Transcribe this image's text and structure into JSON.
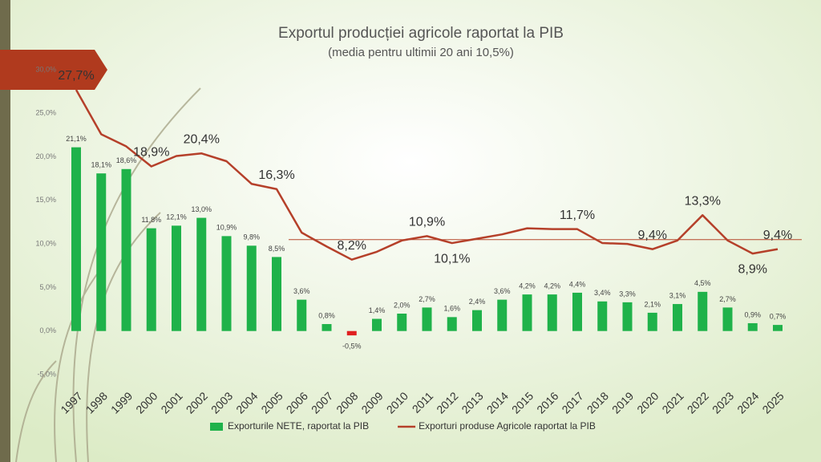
{
  "chart_data": {
    "type": "combo",
    "title": "Exportul producției agricole raportat la PIB",
    "subtitle": "(media pentru ultimii 20 ani 10,5%)",
    "categories": [
      "1997",
      "1998",
      "1999",
      "2000",
      "2001",
      "2002",
      "2003",
      "2004",
      "2005",
      "2006",
      "2007",
      "2008",
      "2009",
      "2010",
      "2011",
      "2012",
      "2013",
      "2014",
      "2015",
      "2016",
      "2017",
      "2018",
      "2019",
      "2020",
      "2021",
      "2022",
      "2023",
      "2024",
      "2025"
    ],
    "ylim": [
      -5,
      30
    ],
    "yticks": [
      {
        "value": -5,
        "label": "-5,0%"
      },
      {
        "value": 0,
        "label": "0,0%"
      },
      {
        "value": 5,
        "label": "5,0%"
      },
      {
        "value": 10,
        "label": "10,0%"
      },
      {
        "value": 15,
        "label": "15,0%"
      },
      {
        "value": 20,
        "label": "20,0%"
      },
      {
        "value": 25,
        "label": "25,0%"
      },
      {
        "value": 30,
        "label": "30,0%"
      }
    ],
    "grid": false,
    "reference_line": 10.5,
    "reference_color": "#b5462a",
    "legend": "bottom",
    "series": [
      {
        "name": "Exporturile NETE, raportat la PIB",
        "type": "bar",
        "color": "#1fb24a",
        "negative_color": "#e02020",
        "values": [
          21.1,
          18.1,
          18.6,
          11.8,
          12.1,
          13.0,
          10.9,
          9.8,
          8.5,
          3.6,
          0.8,
          -0.5,
          1.4,
          2.0,
          2.7,
          1.6,
          2.4,
          3.6,
          4.2,
          4.2,
          4.4,
          3.4,
          3.3,
          2.1,
          3.1,
          4.5,
          2.7,
          0.9,
          0.7
        ],
        "value_labels": [
          "21,1%",
          "18,1%",
          "18,6%",
          "11,8%",
          "12,1%",
          "13,0%",
          "10,9%",
          "9,8%",
          "8,5%",
          "3,6%",
          "0,8%",
          "-0,5%",
          "1,4%",
          "2,0%",
          "2,7%",
          "1,6%",
          "2,4%",
          "3,6%",
          "4,2%",
          "4,2%",
          "4,4%",
          "3,4%",
          "3,3%",
          "2,1%",
          "3,1%",
          "4,5%",
          "2,7%",
          "0,9%",
          "0,7%"
        ]
      },
      {
        "name": "Exporturi produse Agricole raportat la PIB",
        "type": "line",
        "color": "#b5402a",
        "values": [
          27.7,
          22.6,
          21.2,
          18.9,
          20.1,
          20.4,
          19.5,
          16.9,
          16.3,
          11.3,
          9.7,
          8.2,
          9.1,
          10.4,
          10.9,
          10.1,
          10.6,
          11.1,
          11.8,
          11.7,
          11.7,
          10.1,
          10.0,
          9.4,
          10.4,
          13.3,
          10.4,
          8.9,
          9.4
        ],
        "value_labels": [
          "27,7%",
          null,
          null,
          "18,9%",
          null,
          "20,4%",
          null,
          null,
          "16,3%",
          null,
          null,
          "8,2%",
          null,
          null,
          "10,9%",
          "10,1%",
          null,
          null,
          null,
          null,
          "11,7%",
          null,
          null,
          "9,4%",
          null,
          "13,3%",
          null,
          "8,9%",
          "9,4%"
        ]
      }
    ]
  }
}
